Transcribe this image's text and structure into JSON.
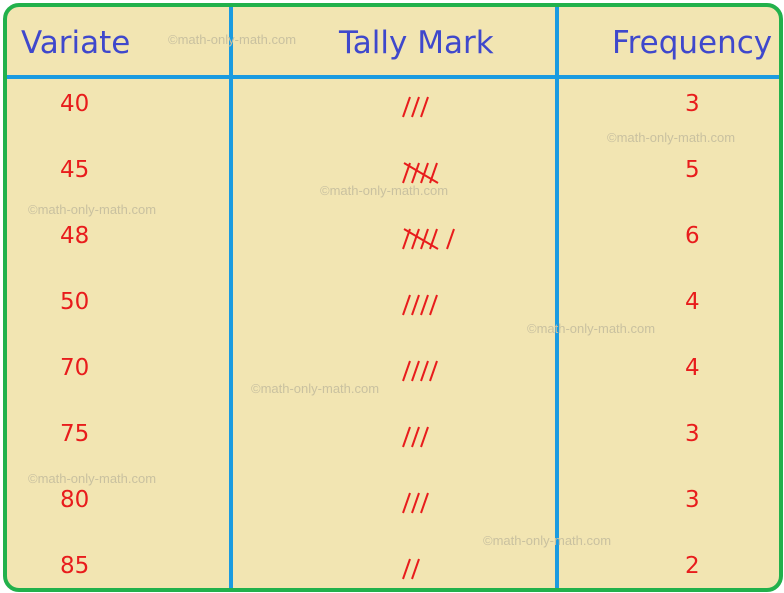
{
  "table": {
    "headers": {
      "variate": "Variate",
      "tally": "Tally Mark",
      "frequency": "Frequency"
    },
    "rows": [
      {
        "variate": "40",
        "tally_count": 3,
        "frequency": "3"
      },
      {
        "variate": "45",
        "tally_count": 5,
        "frequency": "5"
      },
      {
        "variate": "48",
        "tally_count": 6,
        "frequency": "6"
      },
      {
        "variate": "50",
        "tally_count": 4,
        "frequency": "4"
      },
      {
        "variate": "70",
        "tally_count": 4,
        "frequency": "4"
      },
      {
        "variate": "75",
        "tally_count": 3,
        "frequency": "3"
      },
      {
        "variate": "80",
        "tally_count": 3,
        "frequency": "3"
      },
      {
        "variate": "85",
        "tally_count": 2,
        "frequency": "2"
      }
    ]
  },
  "watermark": "©math-only-math.com",
  "colors": {
    "background": "#f2e5b2",
    "border": "#22b14c",
    "grid_lines": "#1b9be0",
    "header_text": "#3f48cc",
    "cell_text": "#e81c1c"
  }
}
